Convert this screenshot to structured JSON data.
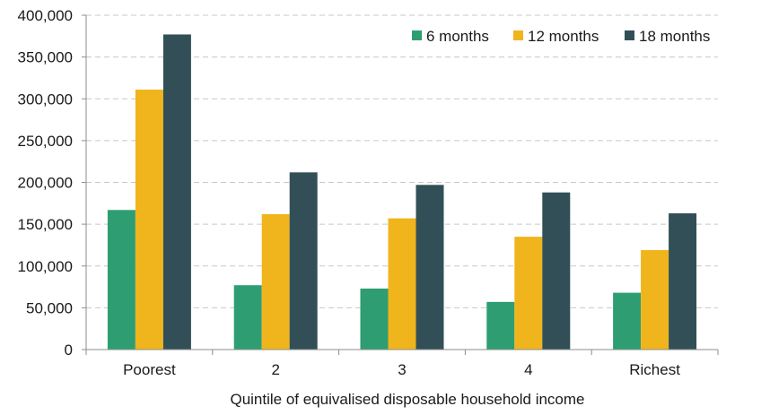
{
  "chart_data": {
    "type": "bar",
    "title": "",
    "xlabel": "Quintile of equivalised disposable household income",
    "ylabel": "",
    "categories": [
      "Poorest",
      "2",
      "3",
      "4",
      "Richest"
    ],
    "series": [
      {
        "name": "6 months",
        "color": "#2e9e72",
        "values": [
          167000,
          77000,
          73000,
          57000,
          68000
        ]
      },
      {
        "name": "12 months",
        "color": "#f0b41c",
        "values": [
          311000,
          162000,
          157000,
          135000,
          119000
        ]
      },
      {
        "name": "18 months",
        "color": "#324f57",
        "values": [
          377000,
          212000,
          197000,
          188000,
          163000
        ]
      }
    ],
    "ylim": [
      0,
      400000
    ],
    "yticks": [
      "0",
      "50,000",
      "100,000",
      "150,000",
      "200,000",
      "250,000",
      "300,000",
      "350,000",
      "400,000"
    ],
    "grid": true,
    "grid_style": "dashed",
    "legend_position": "top-right"
  }
}
